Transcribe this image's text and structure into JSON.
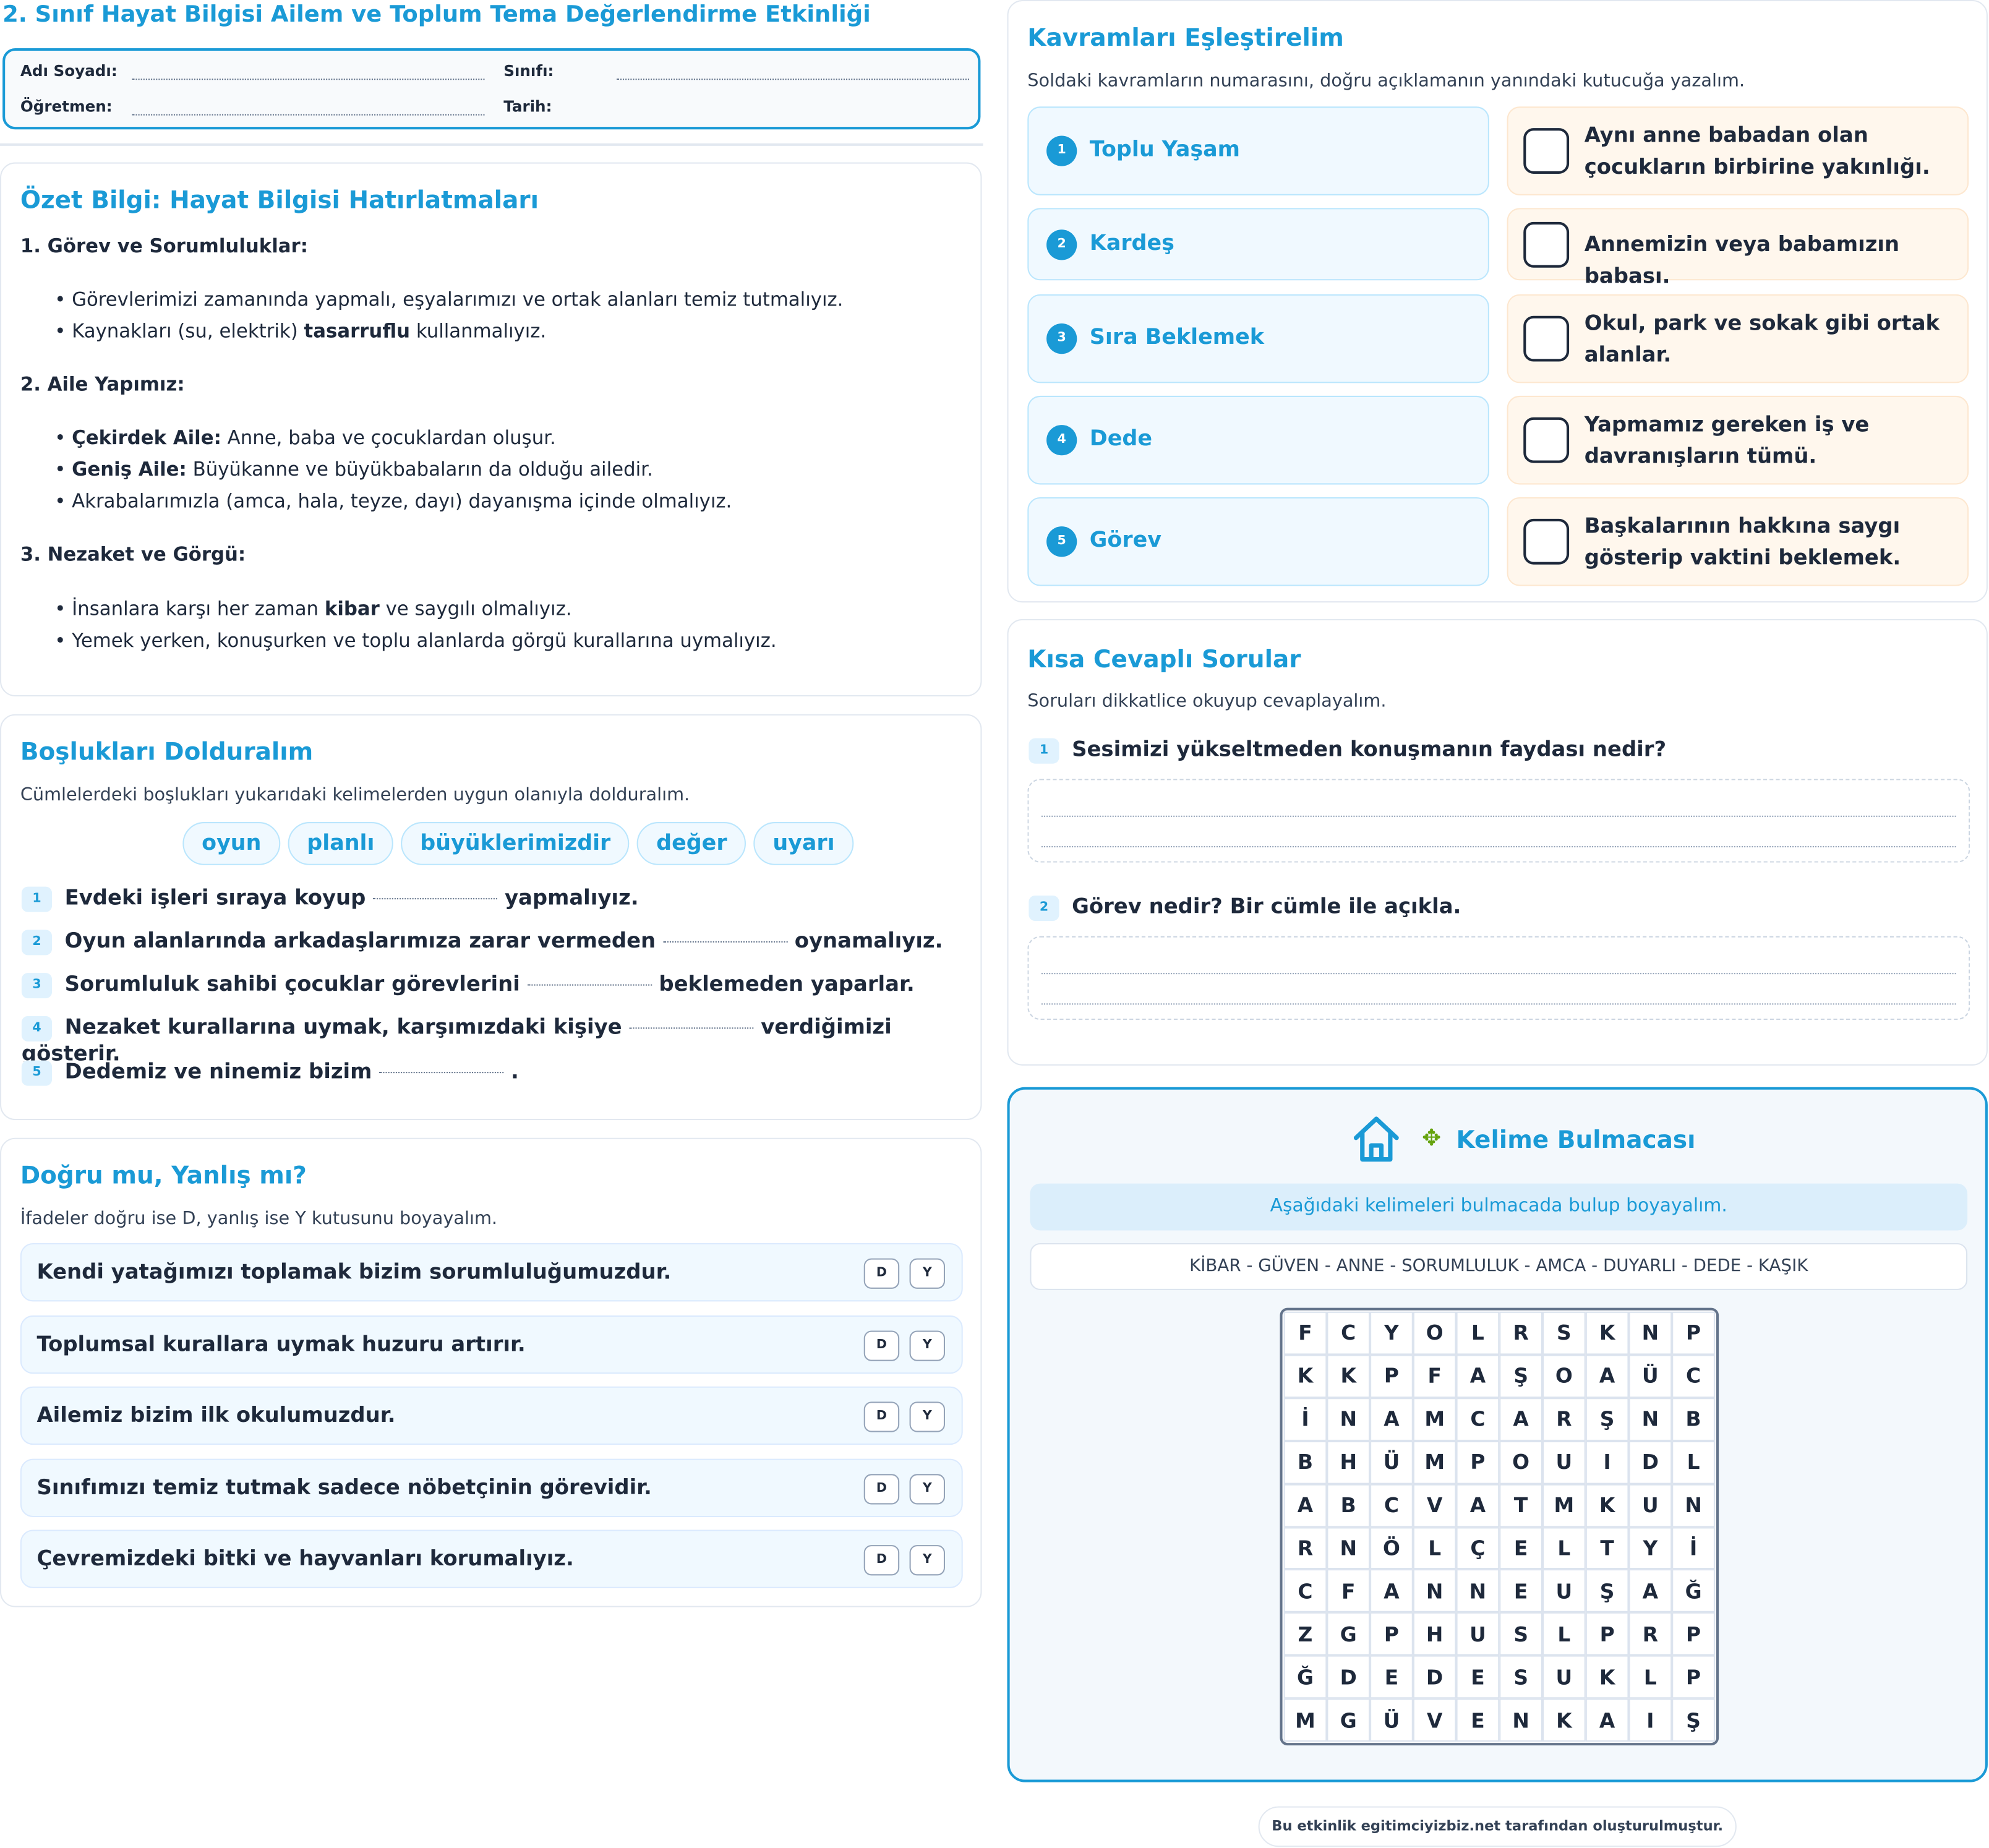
{
  "title": "2. Sınıf Hayat Bilgisi Ailem ve Toplum Tema Değerlendirme Etkinliği",
  "header": {
    "name_label": "Adı Soyadı:",
    "class_label": "Sınıfı:",
    "teacher_label": "Öğretmen:",
    "date_label": "Tarih:"
  },
  "summary": {
    "title": "Özet Bilgi: Hayat Bilgisi Hatırlatmaları",
    "s1": "1. Görev ve Sorumluluklar:",
    "s1a": "• Görevlerimizi zamanında yapmalı, eşyalarımızı ve ortak alanları temiz tutmalıyız.",
    "s1b_pre": "• Kaynakları (su, elektrik) ",
    "s1b_bold": "tasarruflu",
    "s1b_post": " kullanmalıyız.",
    "s2": "2. Aile Yapımız:",
    "s2a_bold": "Çekirdek Aile:",
    "s2a": " Anne, baba ve çocuklardan oluşur.",
    "s2b_bold": "Geniş Aile:",
    "s2b": " Büyükanne ve büyükbabaların da olduğu ailedir.",
    "s2c": "• Akrabalarımızla (amca, hala, teyze, dayı) dayanışma içinde olmalıyız.",
    "s3": "3. Nezaket ve Görgü:",
    "s3a_pre": "• İnsanlara karşı her zaman ",
    "s3a_bold": "kibar",
    "s3a_post": " ve saygılı olmalıyız.",
    "s3b": "• Yemek yerken, konuşurken ve toplu alanlarda görgü kurallarına uymalıyız."
  },
  "fill": {
    "title": "Boşlukları Dolduralım",
    "instruction": "Cümlelerdeki boşlukları yukarıdaki kelimelerden uygun olanıyla dolduralım.",
    "words": [
      "oyun",
      "planlı",
      "büyüklerimizdir",
      "değer",
      "uyarı"
    ],
    "items": [
      {
        "n": "1",
        "pre": "Evdeki işleri sıraya koyup",
        "post": "yapmalıyız."
      },
      {
        "n": "2",
        "pre": "Oyun alanlarında arkadaşlarımıza zarar vermeden",
        "post": "oynamalıyız."
      },
      {
        "n": "3",
        "pre": "Sorumluluk sahibi çocuklar görevlerini",
        "post": "beklemeden yaparlar."
      },
      {
        "n": "4",
        "pre": "Nezaket kurallarına uymak, karşımızdaki kişiye",
        "post": "verdiğimizi gösterir."
      },
      {
        "n": "5",
        "pre": "Dedemiz ve ninemiz bizim",
        "post": "."
      }
    ]
  },
  "tf": {
    "title": "Doğru mu, Yanlış mı?",
    "instruction": "İfadeler doğru ise D, yanlış ise Y kutusunu boyayalım.",
    "d": "D",
    "y": "Y",
    "items": [
      "Kendi yatağımızı toplamak bizim sorumluluğumuzdur.",
      "Toplumsal kurallara uymak huzuru artırır.",
      "Ailemiz bizim ilk okulumuzdur.",
      "Sınıfımızı temiz tutmak sadece nöbetçinin görevidir.",
      "Çevremizdeki bitki ve hayvanları korumalıyız."
    ]
  },
  "match": {
    "title": "Kavramları Eşleştirelim",
    "instruction": "Soldaki kavramların numarasını, doğru açıklamanın yanındaki kutucuğa yazalım.",
    "left": [
      {
        "n": "1",
        "t": "Toplu Yaşam"
      },
      {
        "n": "2",
        "t": "Kardeş"
      },
      {
        "n": "3",
        "t": "Sıra Beklemek"
      },
      {
        "n": "4",
        "t": "Dede"
      },
      {
        "n": "5",
        "t": "Görev"
      }
    ],
    "right": [
      "Aynı anne babadan olan çocukların birbirine yakınlığı.",
      "Annemizin veya babamızın babası.",
      "Okul, park ve sokak gibi ortak alanlar.",
      "Yapmamız gereken iş ve davranışların tümü.",
      "Başkalarının hakkına saygı gösterip vaktini beklemek."
    ]
  },
  "short": {
    "title": "Kısa Cevaplı Sorular",
    "instruction": "Soruları dikkatlice okuyup cevaplayalım.",
    "q": [
      {
        "n": "1",
        "t": "Sesimizi yükseltmeden konuşmanın faydası nedir?"
      },
      {
        "n": "2",
        "t": "Görev nedir? Bir cümle ile açıkla."
      }
    ]
  },
  "puzzle": {
    "title": "Kelime Bulmacası",
    "instruction": "Aşağıdaki kelimeleri bulmacada bulup boyayalım.",
    "words": "KİBAR - GÜVEN - ANNE - SORUMLULUK - AMCA - DUYARLI - DEDE - KAŞIK",
    "grid": [
      "FCYOLRSKNP",
      "KKPFAŞOAÜC",
      "İNAMCARŞNB",
      "BHÜMPOUIDL",
      "ABCVATMKUN",
      "RNÖLÇELTYİ",
      "CFANNEUŞAĞ",
      "ZGPHUSLPRP",
      "ĞDEDESUKLP",
      "MGÜVENKAIŞ"
    ]
  },
  "footer": "Bu etkinlik egitimciyizbiz.net tarafından oluşturulmuştur.",
  "colors": {
    "accent": "#1a9ad6",
    "text": "#1e293b"
  }
}
